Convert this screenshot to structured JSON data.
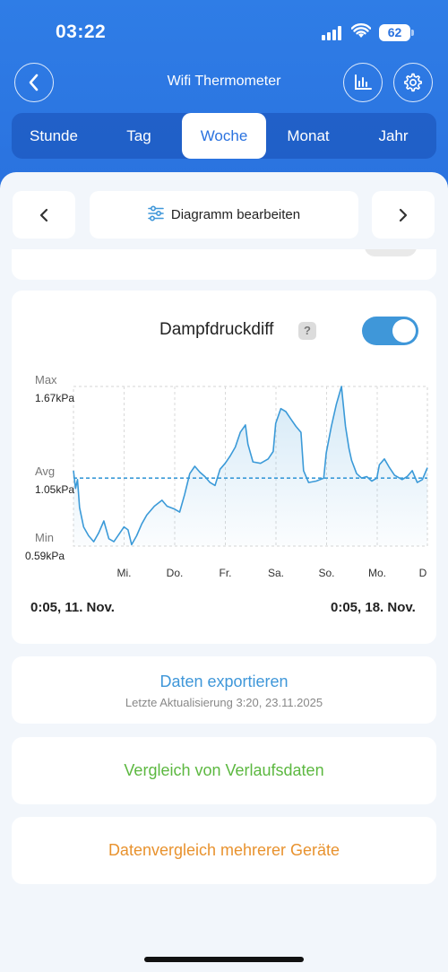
{
  "status": {
    "time": "03:22",
    "battery": "62"
  },
  "nav": {
    "title": "Wifi Thermometer",
    "icons": [
      "back-icon",
      "chart-icon",
      "gear-icon"
    ]
  },
  "tabs": [
    {
      "label": "Stunde"
    },
    {
      "label": "Tag"
    },
    {
      "label": "Woche",
      "active": true
    },
    {
      "label": "Monat"
    },
    {
      "label": "Jahr"
    }
  ],
  "toolbar": {
    "edit_label": "Diagramm bearbeiten"
  },
  "chart_card": {
    "title": "Dampfdruckdiff",
    "help": "?",
    "toggle_on": true,
    "range_start": "0:05,  11. Nov.",
    "range_end": "0:05,  18. Nov."
  },
  "chart_data": {
    "type": "line",
    "unit": "kPa",
    "y_labels": {
      "max_label": "Max",
      "max_value": "1.67kPa",
      "avg_label": "Avg",
      "avg_value": "1.05kPa",
      "min_label": "Min",
      "min_value": "0.59kPa"
    },
    "ylim": [
      0.59,
      1.67
    ],
    "avg": 1.05,
    "x_ticks": [
      "Mi.",
      "Do.",
      "Fr.",
      "Sa.",
      "So.",
      "Mo.",
      "D"
    ],
    "x_range_days": [
      0,
      7
    ],
    "series": [
      {
        "color": "#3b9ad8",
        "points": [
          [
            0.0,
            1.1
          ],
          [
            0.04,
            0.98
          ],
          [
            0.08,
            1.04
          ],
          [
            0.12,
            0.85
          ],
          [
            0.2,
            0.72
          ],
          [
            0.3,
            0.66
          ],
          [
            0.4,
            0.62
          ],
          [
            0.5,
            0.68
          ],
          [
            0.6,
            0.76
          ],
          [
            0.7,
            0.64
          ],
          [
            0.8,
            0.62
          ],
          [
            0.9,
            0.67
          ],
          [
            1.0,
            0.72
          ],
          [
            1.08,
            0.7
          ],
          [
            1.15,
            0.6
          ],
          [
            1.25,
            0.66
          ],
          [
            1.35,
            0.74
          ],
          [
            1.45,
            0.8
          ],
          [
            1.6,
            0.86
          ],
          [
            1.75,
            0.9
          ],
          [
            1.85,
            0.86
          ],
          [
            2.0,
            0.84
          ],
          [
            2.1,
            0.82
          ],
          [
            2.2,
            0.94
          ],
          [
            2.3,
            1.08
          ],
          [
            2.4,
            1.13
          ],
          [
            2.5,
            1.09
          ],
          [
            2.6,
            1.06
          ],
          [
            2.7,
            1.02
          ],
          [
            2.8,
            1.0
          ],
          [
            2.9,
            1.11
          ],
          [
            3.0,
            1.15
          ],
          [
            3.1,
            1.2
          ],
          [
            3.2,
            1.26
          ],
          [
            3.3,
            1.36
          ],
          [
            3.4,
            1.41
          ],
          [
            3.45,
            1.28
          ],
          [
            3.55,
            1.16
          ],
          [
            3.7,
            1.15
          ],
          [
            3.85,
            1.18
          ],
          [
            3.95,
            1.23
          ],
          [
            4.0,
            1.42
          ],
          [
            4.1,
            1.52
          ],
          [
            4.2,
            1.5
          ],
          [
            4.3,
            1.45
          ],
          [
            4.4,
            1.4
          ],
          [
            4.5,
            1.36
          ],
          [
            4.55,
            1.1
          ],
          [
            4.65,
            1.02
          ],
          [
            4.8,
            1.03
          ],
          [
            4.95,
            1.05
          ],
          [
            5.0,
            1.22
          ],
          [
            5.1,
            1.4
          ],
          [
            5.2,
            1.55
          ],
          [
            5.3,
            1.67
          ],
          [
            5.38,
            1.4
          ],
          [
            5.45,
            1.25
          ],
          [
            5.5,
            1.17
          ],
          [
            5.6,
            1.08
          ],
          [
            5.7,
            1.05
          ],
          [
            5.8,
            1.06
          ],
          [
            5.9,
            1.03
          ],
          [
            6.0,
            1.05
          ],
          [
            6.05,
            1.14
          ],
          [
            6.15,
            1.18
          ],
          [
            6.25,
            1.12
          ],
          [
            6.35,
            1.07
          ],
          [
            6.5,
            1.04
          ],
          [
            6.6,
            1.06
          ],
          [
            6.7,
            1.1
          ],
          [
            6.8,
            1.02
          ],
          [
            6.9,
            1.04
          ],
          [
            7.0,
            1.12
          ],
          [
            7.1,
            1.08
          ],
          [
            7.25,
            1.06
          ],
          [
            7.4,
            1.1
          ],
          [
            7.55,
            1.16
          ],
          [
            7.7,
            1.2
          ]
        ]
      }
    ],
    "x_plot_max": 7.0
  },
  "actions": {
    "export_label": "Daten exportieren",
    "export_sub": "Letzte Aktualisierung 3:20,  23.11.2025",
    "compare_history_label": "Vergleich von Verlaufsdaten",
    "compare_devices_label": "Datenvergleich mehrerer Geräte"
  },
  "colors": {
    "header": "#2a72df",
    "accent_blue": "#3f97d9",
    "green": "#5cb840",
    "orange": "#e8922e"
  }
}
